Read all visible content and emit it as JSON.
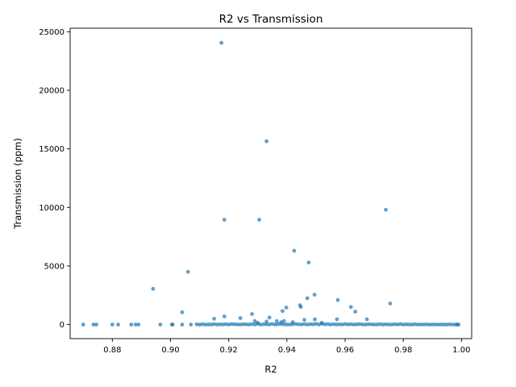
{
  "chart_data": {
    "type": "scatter",
    "title": "R2 vs Transmission",
    "xlabel": "R2",
    "ylabel": "Transmission (ppm)",
    "xlim": [
      0.8655,
      1.0035
    ],
    "ylim": [
      -1200,
      25300
    ],
    "xticks": [
      0.88,
      0.9,
      0.92,
      0.94,
      0.96,
      0.98,
      1.0
    ],
    "xtick_labels": [
      "0.88",
      "0.90",
      "0.92",
      "0.94",
      "0.96",
      "0.98",
      "1.00"
    ],
    "yticks": [
      0,
      5000,
      10000,
      15000,
      20000,
      25000
    ],
    "ytick_labels": [
      "0",
      "5000",
      "10000",
      "15000",
      "20000",
      "25000"
    ],
    "grid": false,
    "point_color": "#1f77b4",
    "point_alpha": 0.7,
    "series": [
      {
        "x": [
          0.9175,
          0.933,
          0.9185,
          0.9305,
          0.974,
          0.9425,
          0.9475,
          0.906,
          0.894,
          0.9495,
          0.947,
          0.9575,
          0.9755,
          0.962,
          0.9445,
          0.9448,
          0.9398,
          0.9385,
          0.9635,
          0.904,
          0.928,
          0.934,
          0.9185,
          0.915,
          0.924,
          0.9675,
          0.9572,
          0.946,
          0.9496,
          0.9365,
          0.939,
          0.933,
          0.929,
          0.938,
          0.942,
          0.93,
          0.952
        ],
        "y": [
          24050,
          15650,
          8950,
          8950,
          9800,
          6300,
          5300,
          4500,
          3050,
          2550,
          2250,
          2100,
          1800,
          1500,
          1650,
          1500,
          1450,
          1150,
          1100,
          1050,
          900,
          600,
          700,
          500,
          550,
          450,
          450,
          400,
          450,
          300,
          300,
          250,
          300,
          200,
          200,
          150,
          150
        ]
      },
      {
        "x": [
          0.87,
          0.8735,
          0.8745,
          0.88,
          0.882,
          0.8865,
          0.888,
          0.889,
          0.8965,
          0.9005,
          0.9007,
          0.904,
          0.907,
          0.909,
          0.91,
          0.911,
          0.912,
          0.913,
          0.914,
          0.915,
          0.916,
          0.917,
          0.918,
          0.919,
          0.92,
          0.921,
          0.922,
          0.923,
          0.924,
          0.925,
          0.926,
          0.927,
          0.928,
          0.929,
          0.93,
          0.931,
          0.932,
          0.933,
          0.934,
          0.935,
          0.936,
          0.937,
          0.938,
          0.939,
          0.94,
          0.941,
          0.942,
          0.943,
          0.944,
          0.945,
          0.946,
          0.947,
          0.948,
          0.949,
          0.95,
          0.951,
          0.952,
          0.953,
          0.954,
          0.955,
          0.956,
          0.957,
          0.958,
          0.959,
          0.96,
          0.961,
          0.962,
          0.963,
          0.964,
          0.965,
          0.966,
          0.967,
          0.968,
          0.969,
          0.97,
          0.971,
          0.972,
          0.973,
          0.974,
          0.975,
          0.976,
          0.977,
          0.978,
          0.979,
          0.98,
          0.981,
          0.982,
          0.983,
          0.984,
          0.985,
          0.986,
          0.987,
          0.988,
          0.989,
          0.99,
          0.991,
          0.992,
          0.993,
          0.994,
          0.995,
          0.996,
          0.997,
          0.998,
          0.9985,
          0.999
        ],
        "y": [
          0,
          0,
          0,
          0,
          0,
          0,
          0,
          0,
          0,
          0,
          0,
          0,
          0,
          20,
          0,
          30,
          0,
          10,
          0,
          40,
          0,
          20,
          10,
          30,
          0,
          40,
          20,
          10,
          0,
          30,
          20,
          0,
          40,
          10,
          60,
          0,
          30,
          20,
          10,
          50,
          0,
          30,
          40,
          20,
          10,
          0,
          30,
          50,
          20,
          10,
          40,
          0,
          30,
          20,
          60,
          10,
          80,
          20,
          40,
          0,
          30,
          10,
          20,
          0,
          40,
          10,
          30,
          0,
          20,
          40,
          10,
          0,
          30,
          20,
          0,
          10,
          30,
          0,
          20,
          10,
          0,
          30,
          10,
          40,
          0,
          20,
          10,
          0,
          30,
          0,
          10,
          0,
          20,
          0,
          10,
          0,
          0,
          10,
          0,
          0,
          20,
          0,
          0,
          0,
          0
        ]
      }
    ]
  }
}
